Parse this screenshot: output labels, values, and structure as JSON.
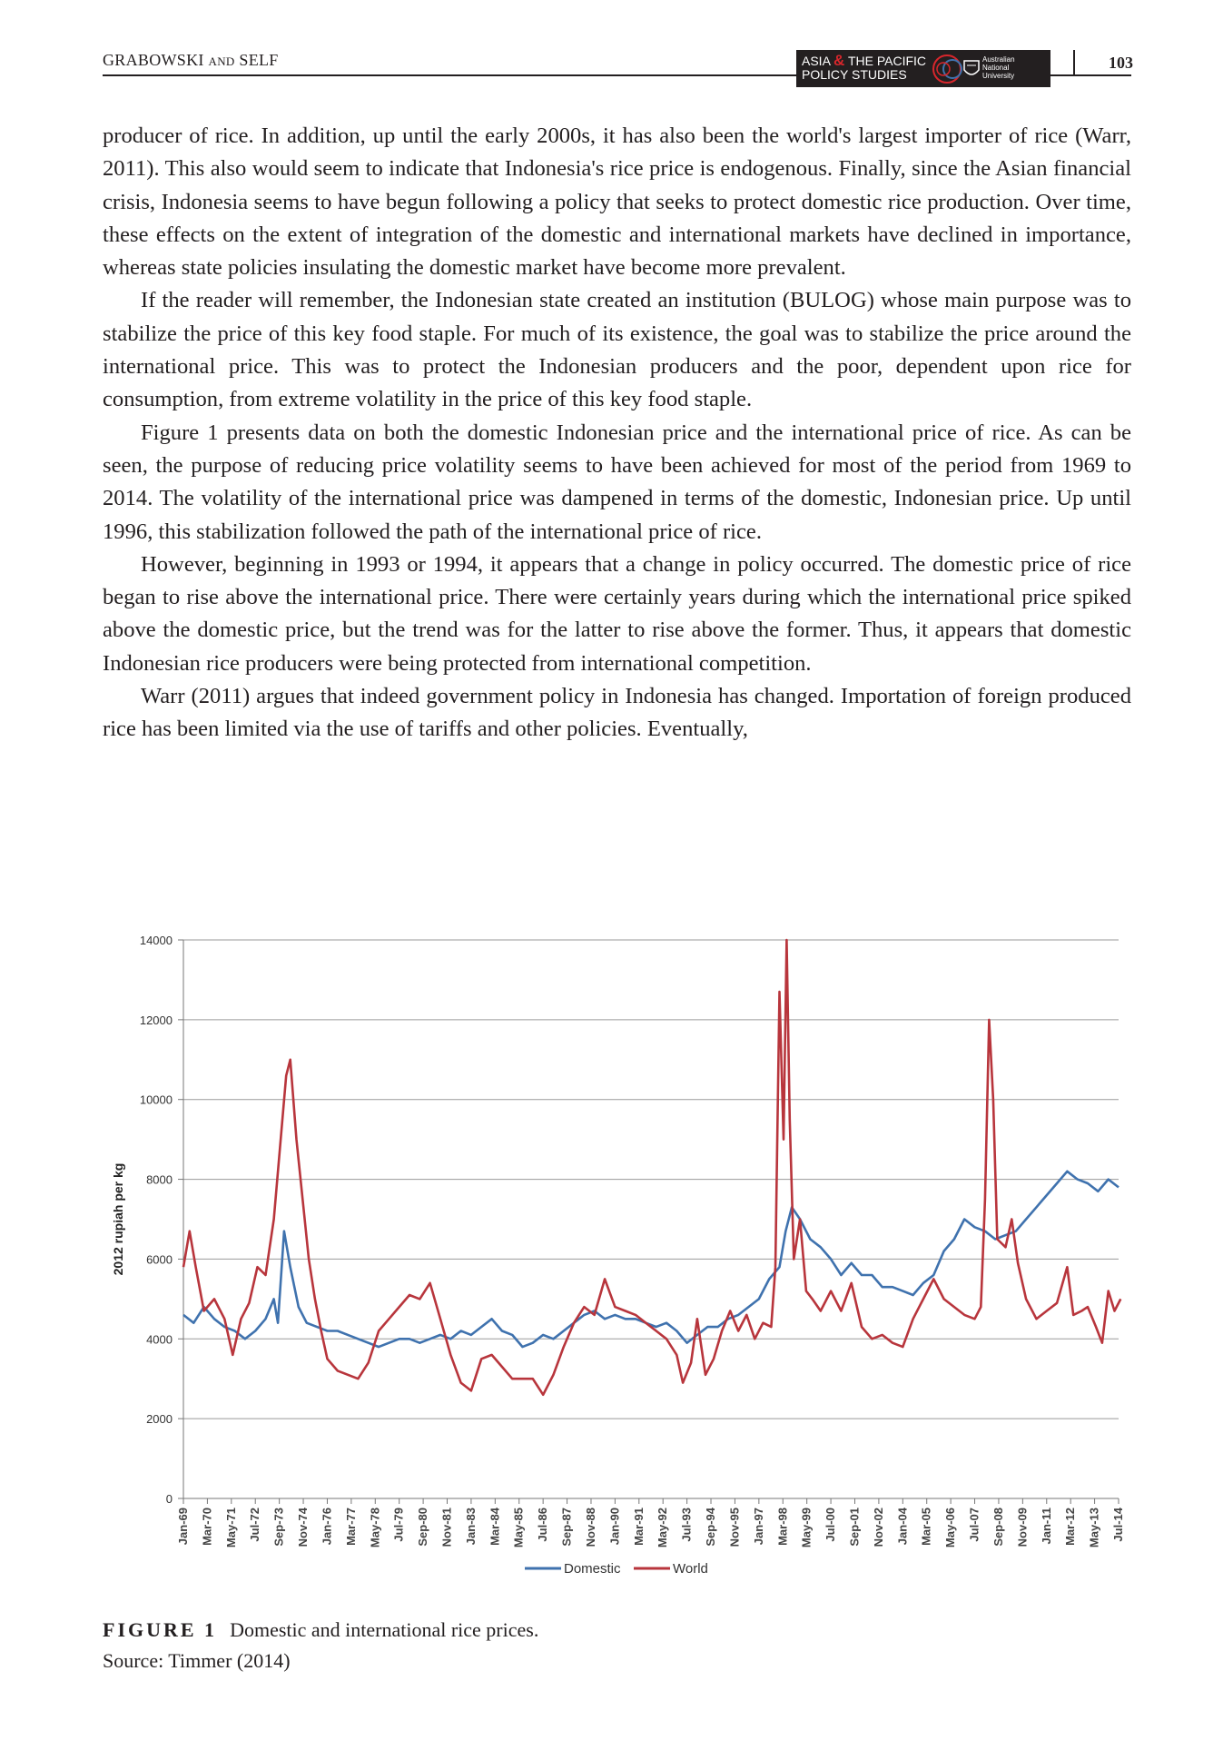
{
  "header": {
    "authors_main": "GRABOWSKI",
    "authors_and": "AND",
    "authors_last": "SELF",
    "journal_line1_a": "ASIA",
    "journal_amp": "&",
    "journal_line1_b": "THE PACIFIC",
    "journal_line2": "POLICY STUDIES",
    "institution_l1": "Australian",
    "institution_l2": "National",
    "institution_l3": "University",
    "page_number": "103"
  },
  "paragraphs": [
    "producer of rice. In addition, up until the early 2000s, it has also been the world's largest importer of rice (Warr, 2011). This also would seem to indicate that Indonesia's rice price is endogenous. Finally, since the Asian financial crisis, Indonesia seems to have begun following a policy that seeks to protect domestic rice production. Over time, these effects on the extent of integration of the domestic and international markets have declined in importance, whereas state policies insulating the domestic market have become more prevalent.",
    "If the reader will remember, the Indonesian state created an institution (BULOG) whose main purpose was to stabilize the price of this key food staple. For much of its existence, the goal was to stabilize the price around the international price. This was to protect the Indonesian producers and the poor, dependent upon rice for consumption, from extreme volatility in the price of this key food staple.",
    "Figure 1 presents data on both the domestic Indonesian price and the international price of rice. As can be seen, the purpose of reducing price volatility seems to have been achieved for most of the period from 1969 to 2014. The volatility of the international price was dampened in terms of the domestic, Indonesian price. Up until 1996, this stabilization followed the path of the international price of rice.",
    "However, beginning in 1993 or 1994, it appears that a change in policy occurred. The domestic price of rice began to rise above the international price. There were certainly years during which the international price spiked above the domestic price, but the trend was for the latter to rise above the former. Thus, it appears that domestic Indonesian rice producers were being protected from international competition.",
    "Warr (2011) argues that indeed government policy in Indonesia has changed. Importation of foreign produced rice has been limited via the use of tariffs and other policies. Eventually,"
  ],
  "figure": {
    "label": "FIGURE 1",
    "caption": "Domestic and international rice prices.",
    "source": "Source: Timmer (2014)"
  },
  "chart_data": {
    "type": "line",
    "title": "",
    "xlabel": "",
    "ylabel": "2012 rupiah per kg",
    "ylim": [
      0,
      14000
    ],
    "yticks": [
      0,
      2000,
      4000,
      6000,
      8000,
      10000,
      12000,
      14000
    ],
    "grid": "horizontal",
    "legend_position": "bottom-center",
    "x_start": "Jan-69",
    "x_end": "Jul-14",
    "x_tick_labels": [
      "Jan-69",
      "Mar-70",
      "May-71",
      "Jul-72",
      "Sep-73",
      "Nov-74",
      "Jan-76",
      "Mar-77",
      "May-78",
      "Jul-79",
      "Sep-80",
      "Nov-81",
      "Jan-83",
      "Mar-84",
      "May-85",
      "Jul-86",
      "Sep-87",
      "Nov-88",
      "Jan-90",
      "Mar-91",
      "May-92",
      "Jul-93",
      "Sep-94",
      "Nov-95",
      "Jan-97",
      "Mar-98",
      "May-99",
      "Jul-00",
      "Sep-01",
      "Nov-02",
      "Jan-04",
      "Mar-05",
      "May-06",
      "Jul-07",
      "Sep-08",
      "Nov-09",
      "Jan-11",
      "Mar-12",
      "May-13",
      "Jul-14"
    ],
    "series": [
      {
        "name": "Domestic",
        "color": "#3f72ae",
        "points": [
          [
            1969.0,
            4600
          ],
          [
            1969.5,
            4400
          ],
          [
            1970.0,
            4800
          ],
          [
            1970.5,
            4500
          ],
          [
            1971.0,
            4300
          ],
          [
            1971.5,
            4200
          ],
          [
            1972.0,
            4000
          ],
          [
            1972.5,
            4200
          ],
          [
            1973.0,
            4500
          ],
          [
            1973.4,
            5000
          ],
          [
            1973.6,
            4400
          ],
          [
            1973.9,
            6700
          ],
          [
            1974.2,
            5800
          ],
          [
            1974.6,
            4800
          ],
          [
            1975.0,
            4400
          ],
          [
            1975.5,
            4300
          ],
          [
            1976.0,
            4200
          ],
          [
            1976.5,
            4200
          ],
          [
            1977.0,
            4100
          ],
          [
            1977.5,
            4000
          ],
          [
            1978.0,
            3900
          ],
          [
            1978.5,
            3800
          ],
          [
            1979.0,
            3900
          ],
          [
            1979.5,
            4000
          ],
          [
            1980.0,
            4000
          ],
          [
            1980.5,
            3900
          ],
          [
            1981.0,
            4000
          ],
          [
            1981.5,
            4100
          ],
          [
            1982.0,
            4000
          ],
          [
            1982.5,
            4200
          ],
          [
            1983.0,
            4100
          ],
          [
            1983.5,
            4300
          ],
          [
            1984.0,
            4500
          ],
          [
            1984.5,
            4200
          ],
          [
            1985.0,
            4100
          ],
          [
            1985.5,
            3800
          ],
          [
            1986.0,
            3900
          ],
          [
            1986.5,
            4100
          ],
          [
            1987.0,
            4000
          ],
          [
            1987.5,
            4200
          ],
          [
            1988.0,
            4400
          ],
          [
            1988.5,
            4600
          ],
          [
            1989.0,
            4700
          ],
          [
            1989.5,
            4500
          ],
          [
            1990.0,
            4600
          ],
          [
            1990.5,
            4500
          ],
          [
            1991.0,
            4500
          ],
          [
            1991.5,
            4400
          ],
          [
            1992.0,
            4300
          ],
          [
            1992.5,
            4400
          ],
          [
            1993.0,
            4200
          ],
          [
            1993.5,
            3900
          ],
          [
            1994.0,
            4100
          ],
          [
            1994.5,
            4300
          ],
          [
            1995.0,
            4300
          ],
          [
            1995.5,
            4500
          ],
          [
            1996.0,
            4600
          ],
          [
            1996.5,
            4800
          ],
          [
            1997.0,
            5000
          ],
          [
            1997.5,
            5500
          ],
          [
            1998.0,
            5800
          ],
          [
            1998.3,
            6700
          ],
          [
            1998.6,
            7300
          ],
          [
            1999.0,
            7000
          ],
          [
            1999.5,
            6500
          ],
          [
            2000.0,
            6300
          ],
          [
            2000.5,
            6000
          ],
          [
            2001.0,
            5600
          ],
          [
            2001.5,
            5900
          ],
          [
            2002.0,
            5600
          ],
          [
            2002.5,
            5600
          ],
          [
            2003.0,
            5300
          ],
          [
            2003.5,
            5300
          ],
          [
            2004.0,
            5200
          ],
          [
            2004.5,
            5100
          ],
          [
            2005.0,
            5400
          ],
          [
            2005.5,
            5600
          ],
          [
            2006.0,
            6200
          ],
          [
            2006.5,
            6500
          ],
          [
            2007.0,
            7000
          ],
          [
            2007.5,
            6800
          ],
          [
            2008.0,
            6700
          ],
          [
            2008.5,
            6500
          ],
          [
            2009.0,
            6600
          ],
          [
            2009.5,
            6700
          ],
          [
            2010.0,
            7000
          ],
          [
            2010.5,
            7300
          ],
          [
            2011.0,
            7600
          ],
          [
            2011.5,
            7900
          ],
          [
            2012.0,
            8200
          ],
          [
            2012.5,
            8000
          ],
          [
            2013.0,
            7900
          ],
          [
            2013.5,
            7700
          ],
          [
            2014.0,
            8000
          ],
          [
            2014.5,
            7800
          ]
        ]
      },
      {
        "name": "World",
        "color": "#b8353c",
        "points": [
          [
            1969.0,
            5800
          ],
          [
            1969.3,
            6700
          ],
          [
            1969.6,
            5800
          ],
          [
            1970.0,
            4700
          ],
          [
            1970.5,
            5000
          ],
          [
            1971.0,
            4500
          ],
          [
            1971.4,
            3600
          ],
          [
            1971.8,
            4500
          ],
          [
            1972.2,
            4900
          ],
          [
            1972.6,
            5800
          ],
          [
            1973.0,
            5600
          ],
          [
            1973.4,
            7000
          ],
          [
            1973.7,
            8800
          ],
          [
            1974.0,
            10600
          ],
          [
            1974.2,
            11000
          ],
          [
            1974.5,
            9000
          ],
          [
            1974.8,
            7500
          ],
          [
            1975.1,
            6000
          ],
          [
            1975.4,
            5000
          ],
          [
            1975.7,
            4200
          ],
          [
            1976.0,
            3500
          ],
          [
            1976.5,
            3200
          ],
          [
            1977.0,
            3100
          ],
          [
            1977.5,
            3000
          ],
          [
            1978.0,
            3400
          ],
          [
            1978.5,
            4200
          ],
          [
            1979.0,
            4500
          ],
          [
            1979.5,
            4800
          ],
          [
            1980.0,
            5100
          ],
          [
            1980.5,
            5000
          ],
          [
            1981.0,
            5400
          ],
          [
            1981.5,
            4500
          ],
          [
            1982.0,
            3600
          ],
          [
            1982.5,
            2900
          ],
          [
            1983.0,
            2700
          ],
          [
            1983.5,
            3500
          ],
          [
            1984.0,
            3600
          ],
          [
            1984.5,
            3300
          ],
          [
            1985.0,
            3000
          ],
          [
            1985.5,
            3000
          ],
          [
            1986.0,
            3000
          ],
          [
            1986.5,
            2600
          ],
          [
            1987.0,
            3100
          ],
          [
            1987.5,
            3800
          ],
          [
            1988.0,
            4400
          ],
          [
            1988.5,
            4800
          ],
          [
            1989.0,
            4600
          ],
          [
            1989.5,
            5500
          ],
          [
            1990.0,
            4800
          ],
          [
            1990.5,
            4700
          ],
          [
            1991.0,
            4600
          ],
          [
            1991.5,
            4400
          ],
          [
            1992.0,
            4200
          ],
          [
            1992.5,
            4000
          ],
          [
            1993.0,
            3600
          ],
          [
            1993.3,
            2900
          ],
          [
            1993.7,
            3400
          ],
          [
            1994.0,
            4500
          ],
          [
            1994.4,
            3100
          ],
          [
            1994.8,
            3500
          ],
          [
            1995.2,
            4200
          ],
          [
            1995.6,
            4700
          ],
          [
            1996.0,
            4200
          ],
          [
            1996.4,
            4600
          ],
          [
            1996.8,
            4000
          ],
          [
            1997.2,
            4400
          ],
          [
            1997.6,
            4300
          ],
          [
            1997.8,
            5800
          ],
          [
            1998.0,
            12700
          ],
          [
            1998.2,
            9000
          ],
          [
            1998.35,
            14000
          ],
          [
            1998.5,
            9500
          ],
          [
            1998.7,
            6000
          ],
          [
            1999.0,
            7000
          ],
          [
            1999.3,
            5200
          ],
          [
            1999.6,
            5000
          ],
          [
            2000.0,
            4700
          ],
          [
            2000.5,
            5200
          ],
          [
            2001.0,
            4700
          ],
          [
            2001.5,
            5400
          ],
          [
            2002.0,
            4300
          ],
          [
            2002.5,
            4000
          ],
          [
            2003.0,
            4100
          ],
          [
            2003.5,
            3900
          ],
          [
            2004.0,
            3800
          ],
          [
            2004.5,
            4500
          ],
          [
            2005.0,
            5000
          ],
          [
            2005.5,
            5500
          ],
          [
            2006.0,
            5000
          ],
          [
            2006.5,
            4800
          ],
          [
            2007.0,
            4600
          ],
          [
            2007.5,
            4500
          ],
          [
            2007.8,
            4800
          ],
          [
            2008.0,
            7500
          ],
          [
            2008.2,
            12000
          ],
          [
            2008.4,
            10000
          ],
          [
            2008.6,
            6500
          ],
          [
            2009.0,
            6300
          ],
          [
            2009.3,
            7000
          ],
          [
            2009.6,
            5900
          ],
          [
            2010.0,
            5000
          ],
          [
            2010.5,
            4500
          ],
          [
            2011.0,
            4700
          ],
          [
            2011.5,
            4900
          ],
          [
            2012.0,
            5800
          ],
          [
            2012.3,
            4600
          ],
          [
            2012.7,
            4700
          ],
          [
            2013.0,
            4800
          ],
          [
            2013.4,
            4300
          ],
          [
            2013.7,
            3900
          ],
          [
            2014.0,
            5200
          ],
          [
            2014.3,
            4700
          ],
          [
            2014.6,
            5000
          ]
        ]
      }
    ]
  }
}
